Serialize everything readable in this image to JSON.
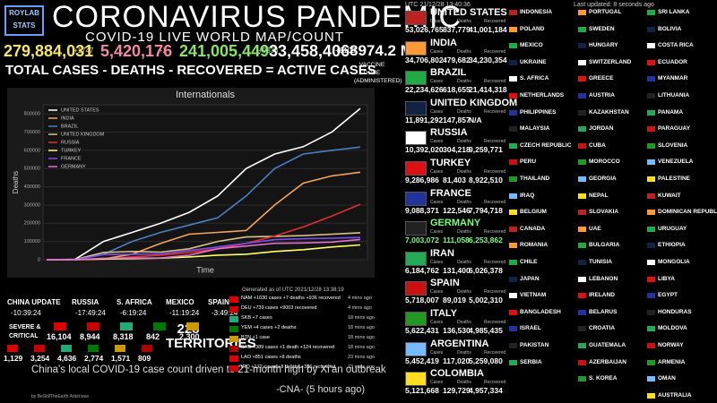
{
  "header": {
    "logo": "ROYLAB STATS",
    "title": "CORONAVIRUS PANDEMIC",
    "subtitle": "COVID-19 LIVE WORLD MAP/COUNT",
    "stats": [
      {
        "value": "279,884,031",
        "delta": "+1747",
        "color": "#f5e663"
      },
      {
        "value": "5,420,176",
        "delta": "+2",
        "color": "#f08aa0"
      },
      {
        "value": "241,005,449",
        "delta": "+9838",
        "color": "#8be36b"
      },
      {
        "value": "33,458,406",
        "delta": "+8103",
        "color": "#ffffff"
      },
      {
        "value": "8974.2 M",
        "delta": "VACCINE DOSE (ADMINISTERED)",
        "color": "#ffffff"
      }
    ],
    "equation": "TOTAL CASES   -   DEATHS   -   RECOVERED  =  ACTIVE CASES"
  },
  "chart_data": {
    "type": "line",
    "title": "Internationals",
    "ylabel": "Deaths",
    "xlabel": "Time",
    "ylim": [
      0,
      850000
    ],
    "yticks": [
      0,
      100000,
      200000,
      300000,
      400000,
      500000,
      600000,
      700000,
      800000
    ],
    "grid": true,
    "series": [
      {
        "name": "UNITED STATES",
        "color": "#ffffff",
        "values": [
          0,
          2000,
          100000,
          150000,
          200000,
          260000,
          350000,
          500000,
          580000,
          620000,
          700000,
          830000
        ]
      },
      {
        "name": "INDIA",
        "color": "#f4a460",
        "values": [
          0,
          0,
          5000,
          30000,
          90000,
          140000,
          150000,
          160000,
          300000,
          420000,
          460000,
          480000
        ]
      },
      {
        "name": "BRAZIL",
        "color": "#4a7fc1",
        "values": [
          0,
          0,
          30000,
          100000,
          150000,
          190000,
          230000,
          350000,
          500000,
          580000,
          600000,
          618000
        ]
      },
      {
        "name": "UNITED KINGDOM",
        "color": "#d9c28a",
        "values": [
          0,
          1000,
          40000,
          45000,
          42000,
          60000,
          100000,
          125000,
          128000,
          132000,
          140000,
          148000
        ]
      },
      {
        "name": "RUSSIA",
        "color": "#e03030",
        "values": [
          0,
          0,
          3000,
          15000,
          25000,
          40000,
          60000,
          90000,
          130000,
          180000,
          240000,
          304000
        ]
      },
      {
        "name": "TURKEY",
        "color": "#ffff66",
        "values": [
          0,
          0,
          4000,
          6000,
          9000,
          15000,
          25000,
          30000,
          45000,
          55000,
          70000,
          81000
        ]
      },
      {
        "name": "FRANCE",
        "color": "#7a4fe8",
        "values": [
          0,
          0,
          28000,
          30000,
          32000,
          50000,
          70000,
          90000,
          110000,
          115000,
          118000,
          122000
        ]
      },
      {
        "name": "GERMANY",
        "color": "#e070d0",
        "values": [
          0,
          0,
          8000,
          9000,
          10000,
          25000,
          60000,
          75000,
          90000,
          92000,
          97000,
          111000
        ]
      }
    ]
  },
  "generated": "Generated as of UTC 2021/12/28 13:38:19",
  "clocks": [
    {
      "place": "CHINA UPDATE",
      "time": "-10:39:24"
    },
    {
      "place": "RUSSIA",
      "time": "-17:49:24"
    },
    {
      "place": "S. AFRICA",
      "time": "-6:19:24"
    },
    {
      "place": "MEXICO",
      "time": "-11:19:24"
    },
    {
      "place": "SPAIN",
      "time": "-3:49:24"
    }
  ],
  "severe_label": "SEVERE & CRITICAL",
  "severe_row1": [
    "16,104",
    "8,944",
    "8,318",
    "842",
    "2,300"
  ],
  "severe_row2": [
    "1,129",
    "3,254",
    "4,636",
    "2,774",
    "1,571",
    "809"
  ],
  "territories": "228 TERRITORIES",
  "updates": [
    {
      "text": "NAM +1030 cases +7 deaths +936 recovered",
      "ago": "4 mins ago"
    },
    {
      "text": "DEU +739 cases +9003 recovered",
      "ago": "4 mins ago"
    },
    {
      "text": "SKB +7 cases",
      "ago": "18 mins ago"
    },
    {
      "text": "YEM +4 cases +2 deaths",
      "ago": "18 mins ago"
    },
    {
      "text": "BTN +1 case",
      "ago": "18 mins ago"
    },
    {
      "text": "SAU +389 cases +1 death +124 recovered",
      "ago": "18 mins ago"
    },
    {
      "text": "LAO +851 cases +8 deaths",
      "ago": "23 mins ago"
    },
    {
      "text": "IRQ +172 cases +8 deaths +336 recovered",
      "ago": "23 mins ago"
    }
  ],
  "news": {
    "headline": "China's local COVID-19 case count driven to 21-month high by Xi'an outbreak",
    "source": "-CNA- (5 hours ago)"
  },
  "footer": "by BeStillTheEarth Artist:wav",
  "panel": {
    "time": "UTC 21/12/28 13:40:36",
    "updated": "Last updated: 8 seconds ago",
    "columns": [
      "Cases",
      "Deaths",
      "Recovered"
    ],
    "countries": [
      [
        "UNITED STATES",
        "53,026,765",
        "837,779",
        "41,001,184"
      ],
      [
        "INDIA",
        "34,706,802",
        "479,682",
        "34,230,354"
      ],
      [
        "BRAZIL",
        "22,234,626",
        "618,655",
        "21,414,318"
      ],
      [
        "UNITED KINGDOM",
        "11,891,292",
        "147,857",
        "N/A"
      ],
      [
        "RUSSIA",
        "10,392,020",
        "304,218",
        "9,259,771"
      ],
      [
        "TURKEY",
        "9,286,986",
        "81,403",
        "8,922,510"
      ],
      [
        "FRANCE",
        "9,088,371",
        "122,546",
        "7,794,718"
      ],
      [
        "GERMANY",
        "7,003,072",
        "111,058",
        "6,253,862"
      ],
      [
        "IRAN",
        "6,184,762",
        "131,400",
        "6,026,378"
      ],
      [
        "SPAIN",
        "5,718,007",
        "89,019",
        "5,002,310"
      ],
      [
        "ITALY",
        "5,622,431",
        "136,530",
        "4,985,435"
      ],
      [
        "ARGENTINA",
        "5,452,419",
        "117,020",
        "5,259,080"
      ],
      [
        "COLOMBIA",
        "5,121,668",
        "129,729",
        "4,957,334"
      ]
    ],
    "small": [
      [
        "INDONESIA",
        "POLAND",
        "MEXICO",
        "UKRAINE",
        "S. AFRICA",
        "NETHERLANDS",
        "PHILIPPINES",
        "MALAYSIA",
        "CZECH REPUBLIC",
        "PERU",
        "THAILAND",
        "IRAQ",
        "BELGIUM",
        "CANADA",
        "ROMANIA",
        "CHILE",
        "JAPAN",
        "VIETNAM",
        "BANGLADESH",
        "ISRAEL",
        "PAKISTAN",
        "SERBIA"
      ],
      [
        "PORTUGAL",
        "SWEDEN",
        "HUNGARY",
        "SWITZERLAND",
        "GREECE",
        "AUSTRIA",
        "KAZAKHSTAN",
        "JORDAN",
        "CUBA",
        "MOROCCO",
        "GEORGIA",
        "NEPAL",
        "SLOVAKIA",
        "UAE",
        "BULGARIA",
        "TUNISIA",
        "LEBANON",
        "IRELAND",
        "BELARUS",
        "CROATIA",
        "GUATEMALA",
        "AZERBAIJAN",
        "S. KOREA"
      ],
      [
        "SRI LANKA",
        "BOLIVIA",
        "COSTA RICA",
        "ECUADOR",
        "MYANMAR",
        "LITHUANIA",
        "PANAMA",
        "PARAGUAY",
        "SLOVENIA",
        "VENEZUELA",
        "PALESTINE",
        "KUWAIT",
        "DOMINICAN REPUBLIC",
        "URUGUAY",
        "ETHIOPIA",
        "MONGOLIA",
        "LIBYA",
        "EGYPT",
        "HONDURAS",
        "MOLDOVA",
        "NORWAY",
        "ARMENIA",
        "OMAN",
        "AUSTRALIA"
      ]
    ]
  }
}
